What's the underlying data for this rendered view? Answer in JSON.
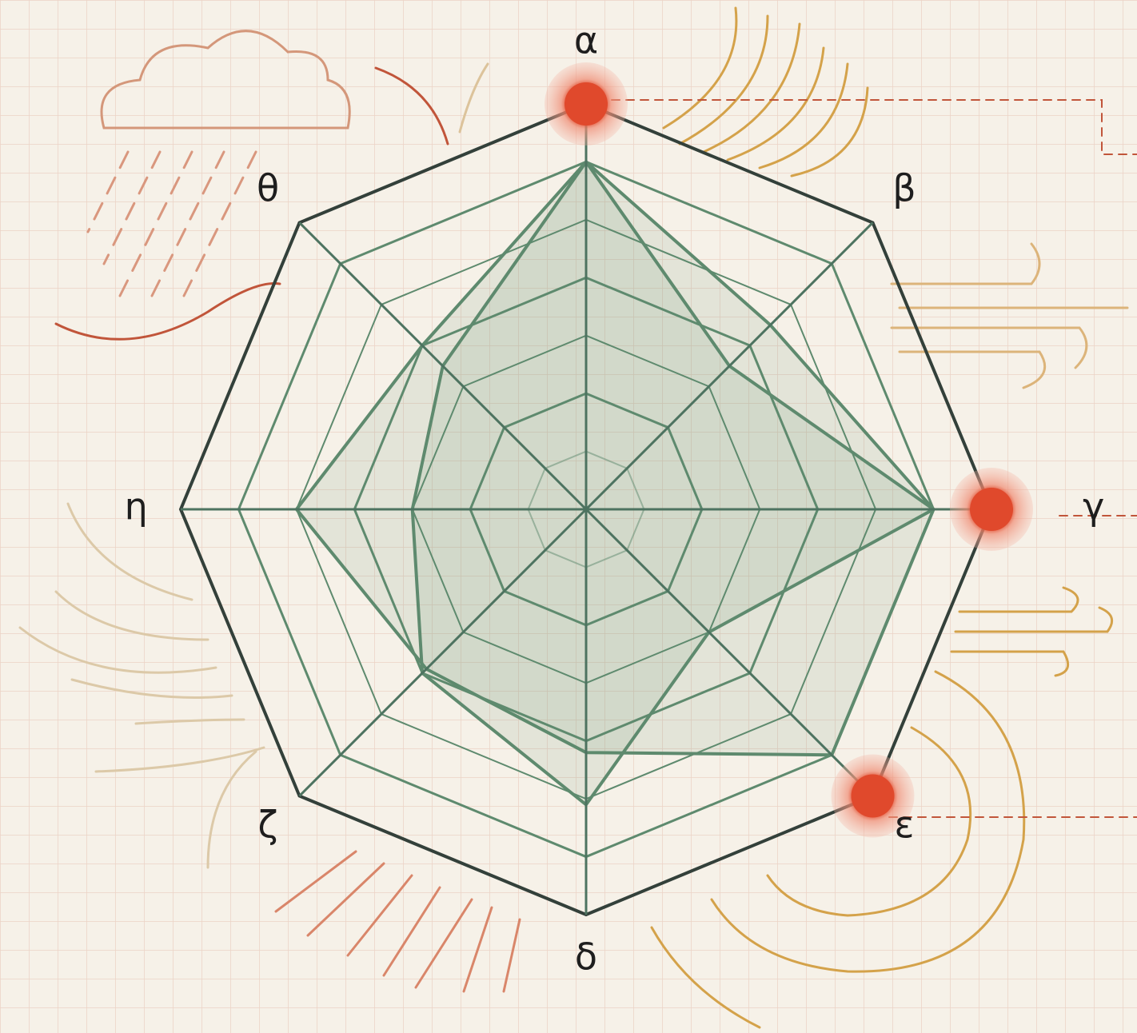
{
  "chart_data": {
    "type": "radar",
    "categories": [
      "α",
      "β",
      "γ",
      "ε",
      "δ",
      "ζ",
      "η",
      "θ"
    ],
    "rlim": [
      0,
      7
    ],
    "rticks": [
      1,
      2,
      3,
      4,
      5,
      6,
      7
    ],
    "grid": true,
    "series": [
      {
        "color": "#5e8a6e",
        "values": [
          6,
          4.5,
          6,
          6,
          4.2,
          3.9,
          5,
          4
        ]
      },
      {
        "color": "#5e8a6e",
        "values": [
          6,
          3.5,
          6,
          3,
          5.1,
          4,
          3,
          3.5
        ]
      }
    ]
  }
}
